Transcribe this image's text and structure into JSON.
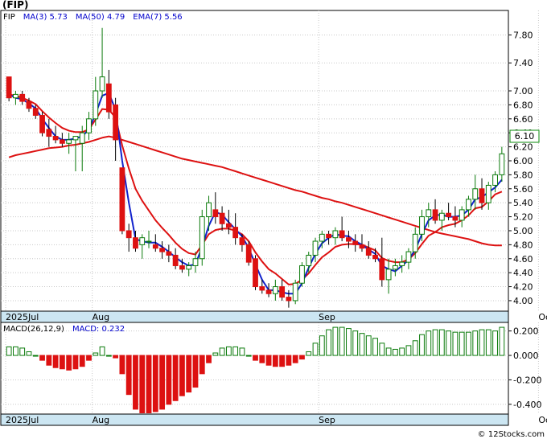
{
  "symbol_label": "(FIP)",
  "copyright": "© 12Stocks.com",
  "chart_data": [
    {
      "type": "candlestick",
      "legend": [
        {
          "label": "FIP",
          "value": "",
          "color": "#000000"
        },
        {
          "label": "MA(3)",
          "value": "5.73",
          "color": "#0000cc"
        },
        {
          "label": "MA(50)",
          "value": "4.79",
          "color": "#0000cc"
        },
        {
          "label": "EMA(7)",
          "value": "5.56",
          "color": "#0000cc"
        }
      ],
      "y_ticks": [
        "7.80",
        "7.40",
        "7.00",
        "6.80",
        "6.60",
        "6.40",
        "6.20",
        "6.00",
        "5.80",
        "5.60",
        "5.40",
        "5.20",
        "5.00",
        "4.80",
        "4.60",
        "4.40",
        "4.20",
        "4.00"
      ],
      "ylim": [
        3.85,
        8.15
      ],
      "x_labels": [
        {
          "label": "2025Jul",
          "index": 0
        },
        {
          "label": "Aug",
          "index": 13
        },
        {
          "label": "Sep",
          "index": 47
        },
        {
          "label": "Oct",
          "index": 80
        }
      ],
      "last_price": "6.10",
      "ohlc": [
        [
          7.2,
          7.2,
          6.85,
          6.9
        ],
        [
          6.9,
          7.0,
          6.8,
          6.95
        ],
        [
          6.95,
          7.0,
          6.8,
          6.85
        ],
        [
          6.85,
          6.9,
          6.7,
          6.75
        ],
        [
          6.75,
          6.8,
          6.6,
          6.65
        ],
        [
          6.65,
          6.7,
          6.35,
          6.4
        ],
        [
          6.45,
          6.6,
          6.2,
          6.35
        ],
        [
          6.35,
          6.5,
          6.25,
          6.3
        ],
        [
          6.3,
          6.4,
          6.2,
          6.25
        ],
        [
          6.25,
          6.4,
          6.1,
          6.3
        ],
        [
          6.3,
          6.35,
          5.85,
          6.35
        ],
        [
          6.25,
          6.5,
          5.85,
          6.4
        ],
        [
          6.4,
          6.7,
          6.3,
          6.6
        ],
        [
          6.6,
          7.2,
          6.5,
          7.0
        ],
        [
          7.0,
          7.9,
          6.9,
          7.2
        ],
        [
          7.1,
          7.3,
          6.6,
          6.7
        ],
        [
          6.8,
          6.9,
          6.0,
          6.3
        ],
        [
          5.9,
          5.9,
          4.95,
          5.0
        ],
        [
          5.0,
          5.1,
          4.7,
          4.9
        ],
        [
          4.9,
          5.0,
          4.7,
          4.75
        ],
        [
          4.8,
          4.95,
          4.6,
          4.9
        ],
        [
          4.85,
          5.0,
          4.75,
          4.85
        ],
        [
          4.8,
          4.95,
          4.7,
          4.75
        ],
        [
          4.75,
          4.85,
          4.6,
          4.7
        ],
        [
          4.7,
          4.8,
          4.55,
          4.65
        ],
        [
          4.65,
          4.75,
          4.45,
          4.5
        ],
        [
          4.5,
          4.6,
          4.4,
          4.45
        ],
        [
          4.45,
          4.55,
          4.35,
          4.5
        ],
        [
          4.5,
          4.7,
          4.4,
          4.6
        ],
        [
          4.6,
          5.3,
          4.5,
          5.2
        ],
        [
          5.2,
          5.5,
          5.0,
          5.4
        ],
        [
          5.3,
          5.55,
          5.1,
          5.2
        ],
        [
          5.25,
          5.35,
          5.0,
          5.1
        ],
        [
          5.1,
          5.3,
          4.95,
          5.05
        ],
        [
          5.05,
          5.25,
          4.8,
          4.9
        ],
        [
          4.9,
          4.95,
          4.7,
          4.8
        ],
        [
          4.8,
          4.85,
          4.5,
          4.55
        ],
        [
          4.6,
          4.65,
          4.15,
          4.2
        ],
        [
          4.2,
          4.3,
          4.1,
          4.15
        ],
        [
          4.15,
          4.25,
          4.05,
          4.1
        ],
        [
          4.1,
          4.3,
          4.0,
          4.2
        ],
        [
          4.2,
          4.3,
          4.0,
          4.05
        ],
        [
          4.05,
          4.15,
          3.9,
          4.0
        ],
        [
          4.0,
          4.3,
          3.95,
          4.25
        ],
        [
          4.25,
          4.55,
          4.2,
          4.5
        ],
        [
          4.5,
          4.7,
          4.4,
          4.65
        ],
        [
          4.65,
          4.9,
          4.55,
          4.85
        ],
        [
          4.85,
          5.0,
          4.75,
          4.95
        ],
        [
          4.95,
          5.0,
          4.8,
          4.9
        ],
        [
          4.9,
          5.05,
          4.8,
          5.0
        ],
        [
          5.0,
          5.2,
          4.85,
          4.9
        ],
        [
          4.9,
          5.0,
          4.75,
          4.85
        ],
        [
          4.85,
          4.95,
          4.7,
          4.8
        ],
        [
          4.8,
          4.95,
          4.7,
          4.75
        ],
        [
          4.75,
          4.85,
          4.6,
          4.65
        ],
        [
          4.65,
          4.75,
          4.55,
          4.6
        ],
        [
          4.6,
          4.9,
          4.2,
          4.3
        ],
        [
          4.3,
          4.6,
          4.1,
          4.45
        ],
        [
          4.45,
          4.6,
          4.35,
          4.5
        ],
        [
          4.5,
          4.65,
          4.4,
          4.55
        ],
        [
          4.55,
          4.75,
          4.45,
          4.7
        ],
        [
          4.7,
          5.05,
          4.6,
          4.95
        ],
        [
          4.95,
          5.3,
          4.85,
          5.2
        ],
        [
          5.2,
          5.4,
          5.05,
          5.3
        ],
        [
          5.3,
          5.45,
          5.1,
          5.15
        ],
        [
          5.15,
          5.3,
          5.0,
          5.25
        ],
        [
          5.25,
          5.4,
          5.15,
          5.2
        ],
        [
          5.2,
          5.35,
          5.05,
          5.15
        ],
        [
          5.15,
          5.35,
          5.05,
          5.3
        ],
        [
          5.3,
          5.5,
          5.2,
          5.45
        ],
        [
          5.45,
          5.8,
          5.3,
          5.6
        ],
        [
          5.6,
          5.75,
          5.3,
          5.4
        ],
        [
          5.4,
          5.7,
          5.3,
          5.65
        ],
        [
          5.65,
          5.85,
          5.55,
          5.8
        ],
        [
          5.8,
          6.2,
          5.7,
          6.1
        ]
      ],
      "ma3": [
        6.95,
        6.9,
        6.88,
        6.82,
        6.75,
        6.6,
        6.47,
        6.35,
        6.3,
        6.3,
        6.32,
        6.35,
        6.45,
        6.67,
        6.93,
        6.97,
        6.73,
        6.0,
        5.4,
        4.88,
        4.85,
        4.83,
        4.83,
        4.77,
        4.7,
        4.62,
        4.55,
        4.5,
        4.52,
        4.77,
        5.07,
        5.27,
        5.23,
        5.12,
        5.02,
        4.92,
        4.75,
        4.52,
        4.3,
        4.15,
        4.15,
        4.12,
        4.1,
        4.1,
        4.25,
        4.47,
        4.67,
        4.82,
        4.9,
        4.95,
        4.93,
        4.92,
        4.85,
        4.8,
        4.73,
        4.67,
        4.5,
        4.45,
        4.42,
        4.5,
        4.58,
        4.73,
        4.95,
        5.15,
        5.22,
        5.23,
        5.2,
        5.2,
        5.22,
        5.3,
        5.45,
        5.48,
        5.55,
        5.62,
        5.73
      ],
      "ma50": [
        6.05,
        6.08,
        6.1,
        6.12,
        6.14,
        6.16,
        6.18,
        6.19,
        6.2,
        6.22,
        6.23,
        6.25,
        6.27,
        6.3,
        6.33,
        6.35,
        6.33,
        6.3,
        6.27,
        6.24,
        6.21,
        6.18,
        6.15,
        6.12,
        6.09,
        6.06,
        6.03,
        6.01,
        5.99,
        5.97,
        5.95,
        5.93,
        5.91,
        5.88,
        5.85,
        5.82,
        5.79,
        5.76,
        5.73,
        5.7,
        5.67,
        5.64,
        5.61,
        5.58,
        5.56,
        5.53,
        5.5,
        5.47,
        5.45,
        5.42,
        5.4,
        5.37,
        5.34,
        5.31,
        5.28,
        5.25,
        5.22,
        5.19,
        5.16,
        5.13,
        5.1,
        5.07,
        5.04,
        5.01,
        4.98,
        4.96,
        4.94,
        4.92,
        4.9,
        4.88,
        4.85,
        4.82,
        4.8,
        4.79,
        4.79
      ],
      "ema7": [
        6.95,
        6.93,
        6.9,
        6.86,
        6.81,
        6.71,
        6.62,
        6.54,
        6.47,
        6.43,
        6.41,
        6.41,
        6.45,
        6.59,
        6.74,
        6.73,
        6.62,
        6.22,
        5.89,
        5.6,
        5.43,
        5.29,
        5.15,
        5.04,
        4.94,
        4.83,
        4.74,
        4.68,
        4.66,
        4.8,
        4.95,
        5.01,
        5.03,
        5.03,
        5.0,
        4.95,
        4.85,
        4.69,
        4.56,
        4.45,
        4.39,
        4.31,
        4.23,
        4.24,
        4.3,
        4.39,
        4.51,
        4.62,
        4.69,
        4.77,
        4.8,
        4.81,
        4.81,
        4.8,
        4.76,
        4.72,
        4.61,
        4.57,
        4.55,
        4.55,
        4.59,
        4.68,
        4.81,
        4.93,
        4.98,
        5.05,
        5.08,
        5.1,
        5.15,
        5.22,
        5.32,
        5.34,
        5.42,
        5.52,
        5.56
      ]
    },
    {
      "type": "bar",
      "legend": [
        {
          "label": "MACD(26,12,9)",
          "value": "",
          "color": "#000000"
        },
        {
          "label": "MACD:",
          "value": "0.232",
          "color": "#0000cc"
        }
      ],
      "y_ticks": [
        "0.200",
        "0.000",
        "-0.200",
        "-0.400"
      ],
      "ylim": [
        -0.48,
        0.27
      ],
      "values": [
        0.07,
        0.07,
        0.06,
        0.03,
        0.0,
        -0.04,
        -0.08,
        -0.1,
        -0.11,
        -0.12,
        -0.11,
        -0.09,
        -0.04,
        0.02,
        0.07,
        0.0,
        -0.02,
        -0.15,
        -0.32,
        -0.44,
        -0.47,
        -0.47,
        -0.46,
        -0.44,
        -0.4,
        -0.37,
        -0.33,
        -0.3,
        -0.26,
        -0.15,
        -0.06,
        0.02,
        0.06,
        0.07,
        0.07,
        0.06,
        0.0,
        -0.04,
        -0.06,
        -0.08,
        -0.09,
        -0.09,
        -0.08,
        -0.06,
        -0.03,
        0.03,
        0.1,
        0.16,
        0.21,
        0.23,
        0.23,
        0.22,
        0.2,
        0.18,
        0.16,
        0.14,
        0.1,
        0.06,
        0.05,
        0.06,
        0.08,
        0.12,
        0.17,
        0.2,
        0.21,
        0.21,
        0.2,
        0.19,
        0.19,
        0.19,
        0.2,
        0.21,
        0.21,
        0.2,
        0.23
      ]
    }
  ]
}
